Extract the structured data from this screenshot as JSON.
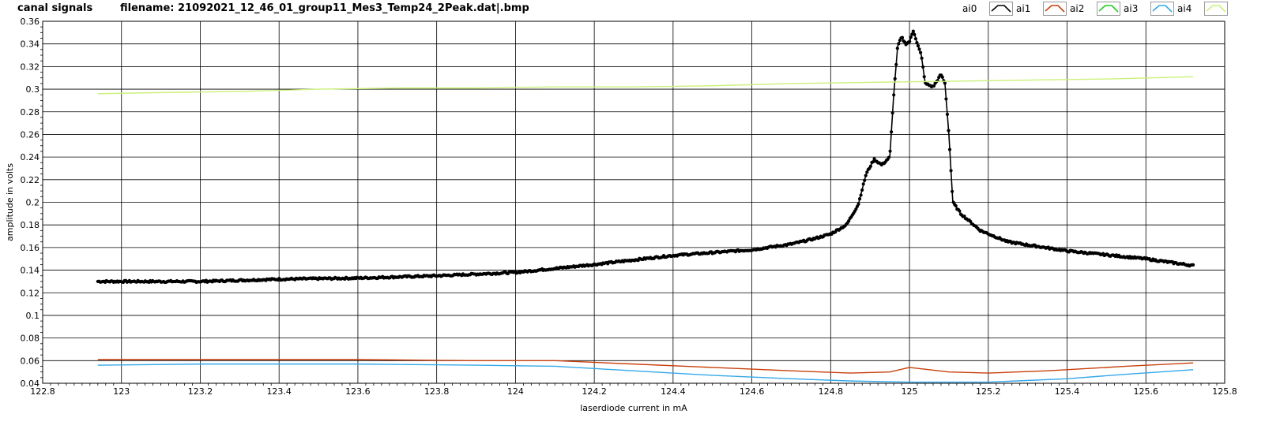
{
  "header": {
    "title": "canal signals",
    "filename": "filename: 21092021_12_46_01_group11_Mes3_Temp24_2Peak.dat|.bmp"
  },
  "legend": [
    {
      "name": "ai0",
      "color": "#000000"
    },
    {
      "name": "ai1",
      "color": "#c8400c"
    },
    {
      "name": "ai2",
      "color": "#22cc22"
    },
    {
      "name": "ai3",
      "color": "#33a8e8"
    },
    {
      "name": "ai4",
      "color": "#ccf07a"
    }
  ],
  "chart_data": {
    "type": "line",
    "xlabel": "laserdiode current in mA",
    "ylabel": "amplitude in volts",
    "xlim": [
      122.8,
      125.8
    ],
    "ylim": [
      0.04,
      0.36
    ],
    "xticks": [
      "122.8",
      "123",
      "123.2",
      "123.4",
      "123.6",
      "123.8",
      "124",
      "124.2",
      "124.4",
      "124.6",
      "124.8",
      "125",
      "125.2",
      "125.4",
      "125.6",
      "125.8"
    ],
    "yticks": [
      "0.04",
      "0.06",
      "0.08",
      "0.1",
      "0.12",
      "0.14",
      "0.16",
      "0.18",
      "0.2",
      "0.22",
      "0.24",
      "0.26",
      "0.28",
      "0.3",
      "0.32",
      "0.34",
      "0.36"
    ],
    "grid": true,
    "series": [
      {
        "name": "ai0",
        "color": "#000000",
        "markers": true,
        "points": [
          [
            122.94,
            0.13
          ],
          [
            123.0,
            0.13
          ],
          [
            123.2,
            0.13
          ],
          [
            123.4,
            0.132
          ],
          [
            123.6,
            0.133
          ],
          [
            123.8,
            0.135
          ],
          [
            124.0,
            0.138
          ],
          [
            124.2,
            0.145
          ],
          [
            124.4,
            0.153
          ],
          [
            124.6,
            0.158
          ],
          [
            124.7,
            0.163
          ],
          [
            124.76,
            0.168
          ],
          [
            124.8,
            0.172
          ],
          [
            124.84,
            0.18
          ],
          [
            124.87,
            0.198
          ],
          [
            124.89,
            0.225
          ],
          [
            124.91,
            0.238
          ],
          [
            124.93,
            0.233
          ],
          [
            124.95,
            0.24
          ],
          [
            124.96,
            0.295
          ],
          [
            124.97,
            0.338
          ],
          [
            124.98,
            0.346
          ],
          [
            124.99,
            0.34
          ],
          [
            125.0,
            0.342
          ],
          [
            125.01,
            0.352
          ],
          [
            125.02,
            0.34
          ],
          [
            125.03,
            0.33
          ],
          [
            125.04,
            0.305
          ],
          [
            125.06,
            0.302
          ],
          [
            125.08,
            0.313
          ],
          [
            125.09,
            0.305
          ],
          [
            125.1,
            0.26
          ],
          [
            125.11,
            0.2
          ],
          [
            125.13,
            0.19
          ],
          [
            125.18,
            0.175
          ],
          [
            125.25,
            0.165
          ],
          [
            125.4,
            0.157
          ],
          [
            125.6,
            0.15
          ],
          [
            125.72,
            0.144
          ]
        ]
      },
      {
        "name": "ai1",
        "color": "#c8400c",
        "markers": false,
        "points": [
          [
            122.94,
            0.061
          ],
          [
            123.2,
            0.061
          ],
          [
            123.6,
            0.061
          ],
          [
            123.9,
            0.06
          ],
          [
            124.1,
            0.06
          ],
          [
            124.3,
            0.057
          ],
          [
            124.5,
            0.054
          ],
          [
            124.7,
            0.051
          ],
          [
            124.85,
            0.049
          ],
          [
            124.95,
            0.05
          ],
          [
            125.0,
            0.054
          ],
          [
            125.05,
            0.052
          ],
          [
            125.1,
            0.05
          ],
          [
            125.2,
            0.049
          ],
          [
            125.35,
            0.051
          ],
          [
            125.55,
            0.055
          ],
          [
            125.72,
            0.058
          ]
        ]
      },
      {
        "name": "ai3",
        "color": "#33a8e8",
        "markers": false,
        "points": [
          [
            122.94,
            0.056
          ],
          [
            123.2,
            0.057
          ],
          [
            123.6,
            0.057
          ],
          [
            123.9,
            0.056
          ],
          [
            124.1,
            0.055
          ],
          [
            124.3,
            0.051
          ],
          [
            124.5,
            0.047
          ],
          [
            124.7,
            0.044
          ],
          [
            124.85,
            0.042
          ],
          [
            125.0,
            0.041
          ],
          [
            125.2,
            0.041
          ],
          [
            125.4,
            0.044
          ],
          [
            125.55,
            0.048
          ],
          [
            125.72,
            0.052
          ]
        ]
      },
      {
        "name": "ai4",
        "color": "#ccf07a",
        "markers": false,
        "points": [
          [
            122.94,
            0.296
          ],
          [
            123.1,
            0.297
          ],
          [
            123.3,
            0.298
          ],
          [
            123.5,
            0.3
          ],
          [
            123.7,
            0.301
          ],
          [
            123.9,
            0.301
          ],
          [
            124.1,
            0.302
          ],
          [
            124.3,
            0.302
          ],
          [
            124.5,
            0.303
          ],
          [
            124.7,
            0.305
          ],
          [
            124.9,
            0.306
          ],
          [
            125.1,
            0.307
          ],
          [
            125.3,
            0.308
          ],
          [
            125.5,
            0.309
          ],
          [
            125.72,
            0.311
          ]
        ]
      }
    ]
  }
}
